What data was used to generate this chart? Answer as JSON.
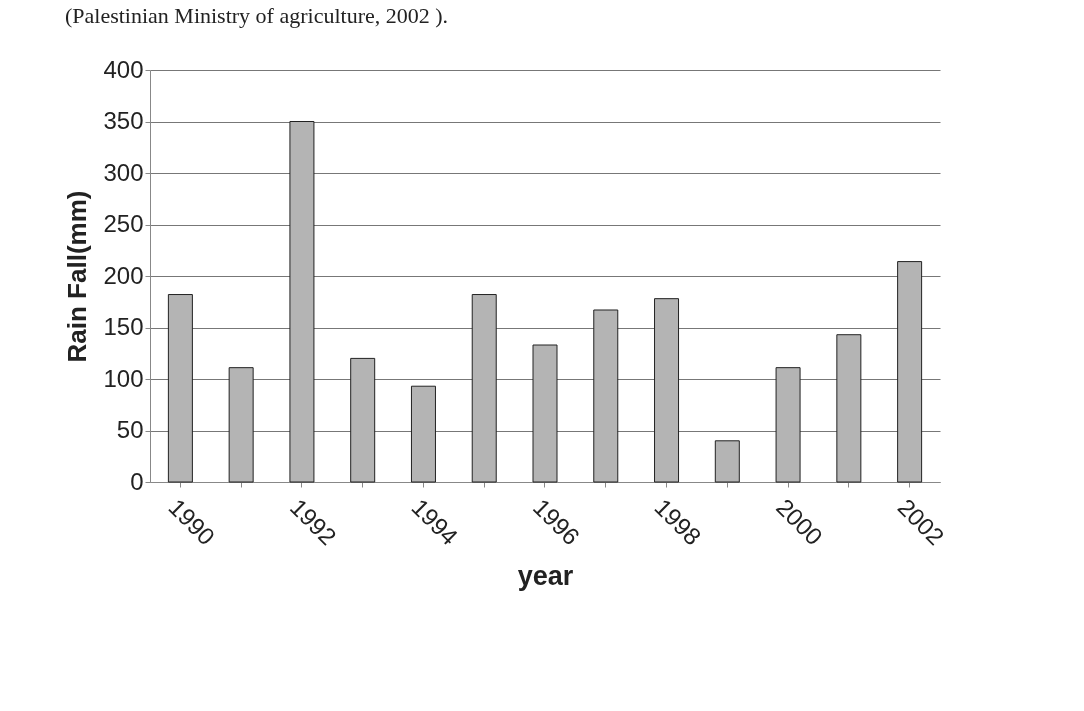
{
  "chart_data": {
    "type": "bar",
    "xlabel": "year",
    "ylabel": "Rain Fall(mm)",
    "categories": [
      "1990",
      null,
      "1992",
      null,
      "1994",
      null,
      "1996",
      null,
      "1998",
      null,
      "2000",
      null,
      "2002"
    ],
    "values": [
      182,
      111,
      350,
      120,
      93,
      182,
      133,
      167,
      178,
      40,
      111,
      143,
      214
    ],
    "color": "#b4b4b4",
    "ylim": [
      0,
      400
    ],
    "yticks": [
      0,
      50,
      100,
      150,
      200,
      250,
      300,
      350,
      400
    ],
    "grid": "y",
    "annotations": [
      "(Palestinian Ministry of agriculture, 2002 )."
    ]
  }
}
